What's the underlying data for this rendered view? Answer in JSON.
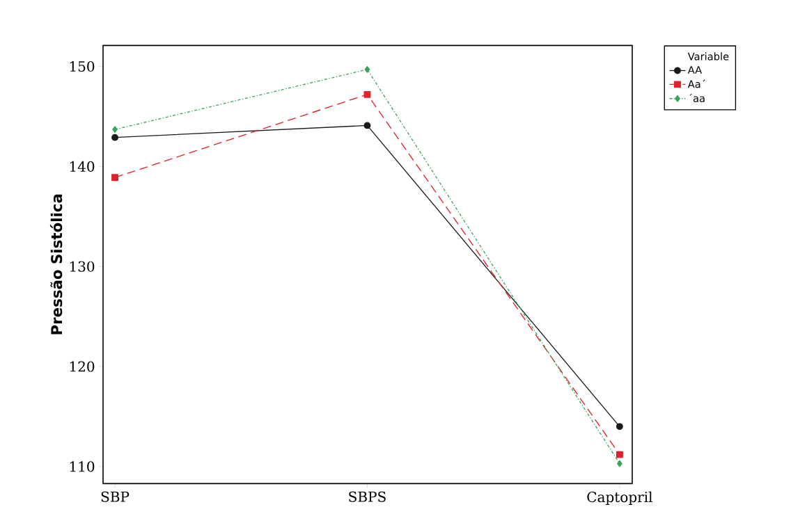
{
  "chart_data": {
    "type": "line",
    "ylabel": "Pressão Sistólica",
    "legend_title": "Variable",
    "categories": [
      "SBP",
      "SBPS",
      "Captopril"
    ],
    "series": [
      {
        "name": "AA",
        "color": "#1a1a1a",
        "values": [
          142.9,
          144.1,
          114.0
        ],
        "marker": "circle",
        "line_style": "solid"
      },
      {
        "name": "Aa´",
        "color": "#e0202a",
        "values": [
          138.9,
          147.2,
          111.2
        ],
        "marker": "square",
        "line_style": "dashed"
      },
      {
        "name": "´aa",
        "color": "#3aa35a",
        "values": [
          143.7,
          149.7,
          110.3
        ],
        "marker": "diamond",
        "line_style": "dotted"
      }
    ],
    "ylim": [
      108.3,
      152.1
    ],
    "yticks": [
      110,
      120,
      130,
      140,
      150
    ],
    "grid": false,
    "legend": "top right"
  }
}
